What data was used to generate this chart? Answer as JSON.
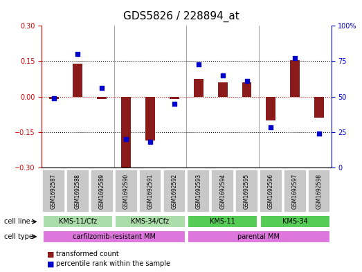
{
  "title": "GDS5826 / 228894_at",
  "samples": [
    "GSM1692587",
    "GSM1692588",
    "GSM1692589",
    "GSM1692590",
    "GSM1692591",
    "GSM1692592",
    "GSM1692593",
    "GSM1692594",
    "GSM1692595",
    "GSM1692596",
    "GSM1692597",
    "GSM1692598"
  ],
  "transformed_count": [
    -0.01,
    0.14,
    -0.01,
    -0.3,
    -0.185,
    -0.01,
    0.075,
    0.06,
    0.06,
    -0.1,
    0.155,
    -0.09
  ],
  "percentile_rank": [
    49,
    80,
    56,
    20,
    18,
    45,
    73,
    65,
    61,
    28,
    77,
    24
  ],
  "ylim_left": [
    -0.3,
    0.3
  ],
  "ylim_right": [
    0,
    100
  ],
  "yticks_left": [
    -0.3,
    -0.15,
    0.0,
    0.15,
    0.3
  ],
  "yticks_right": [
    0,
    25,
    50,
    75,
    100
  ],
  "hlines": [
    -0.15,
    0.15
  ],
  "bar_color": "#8B1A1A",
  "dot_color": "#0000CC",
  "cell_line_groups": [
    {
      "label": "KMS-11/Cfz",
      "start": 0,
      "end": 3,
      "color": "#AADDAA"
    },
    {
      "label": "KMS-34/Cfz",
      "start": 3,
      "end": 6,
      "color": "#AADDAA"
    },
    {
      "label": "KMS-11",
      "start": 6,
      "end": 9,
      "color": "#55CC55"
    },
    {
      "label": "KMS-34",
      "start": 9,
      "end": 12,
      "color": "#55CC55"
    }
  ],
  "cell_type_groups": [
    {
      "label": "carfilzomib-resistant MM",
      "start": 0,
      "end": 6,
      "color": "#DD77DD"
    },
    {
      "label": "parental MM",
      "start": 6,
      "end": 12,
      "color": "#DD77DD"
    }
  ],
  "legend_items": [
    {
      "color": "#8B1A1A",
      "label": "transformed count"
    },
    {
      "color": "#0000CC",
      "label": "percentile rank within the sample"
    }
  ],
  "bg_color": "#FFFFFF",
  "plot_bg": "#FFFFFF",
  "zero_line_color": "#CC0000",
  "title_fontsize": 11,
  "tick_fontsize": 7,
  "label_fontsize": 7
}
